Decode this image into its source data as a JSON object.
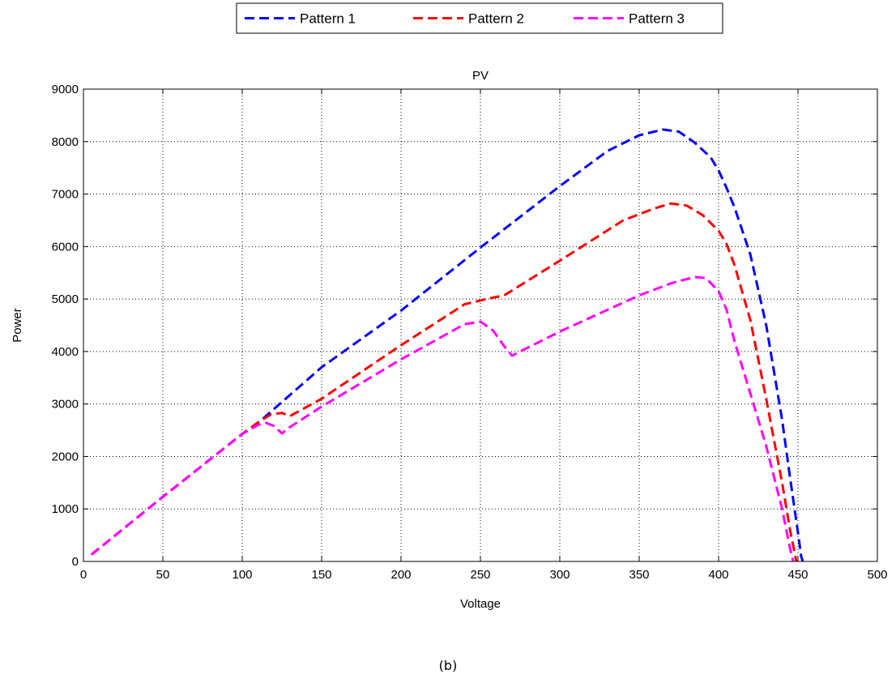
{
  "chart_data": {
    "type": "line",
    "title": "PV",
    "xlabel": "Voltage",
    "ylabel": "Power",
    "xlim": [
      0,
      500
    ],
    "ylim": [
      0,
      9000
    ],
    "xticks": [
      0,
      50,
      100,
      150,
      200,
      250,
      300,
      350,
      400,
      450,
      500
    ],
    "yticks": [
      0,
      1000,
      2000,
      3000,
      4000,
      5000,
      6000,
      7000,
      8000,
      9000
    ],
    "grid": true,
    "legend_position": "top-center-outside",
    "series": [
      {
        "name": "Pattern 1",
        "color": "#0000ff",
        "line_style": "dashed",
        "x": [
          5,
          50,
          100,
          110,
          150,
          200,
          250,
          300,
          330,
          350,
          365,
          375,
          385,
          395,
          400,
          405,
          410,
          420,
          430,
          440,
          445,
          450,
          452,
          453
        ],
        "y": [
          130,
          1230,
          2430,
          2640,
          3700,
          4780,
          5980,
          7150,
          7820,
          8120,
          8230,
          8190,
          7980,
          7700,
          7450,
          7120,
          6750,
          5850,
          4500,
          2700,
          1600,
          550,
          100,
          0
        ]
      },
      {
        "name": "Pattern 2",
        "color": "#ff0000",
        "line_style": "dashed",
        "x": [
          5,
          50,
          100,
          110,
          118,
          125,
          130,
          150,
          200,
          240,
          255,
          265,
          300,
          340,
          360,
          370,
          380,
          390,
          400,
          405,
          410,
          420,
          430,
          440,
          445,
          448,
          449
        ],
        "y": [
          130,
          1230,
          2430,
          2650,
          2800,
          2830,
          2770,
          3100,
          4120,
          4900,
          5010,
          5070,
          5730,
          6500,
          6730,
          6820,
          6780,
          6600,
          6300,
          6050,
          5650,
          4600,
          3100,
          1500,
          600,
          150,
          0
        ]
      },
      {
        "name": "Pattern 3",
        "color": "#ff00ff",
        "line_style": "dashed",
        "x": [
          5,
          50,
          100,
          110,
          115,
          120,
          125,
          130,
          150,
          200,
          240,
          250,
          258,
          265,
          270,
          275,
          300,
          350,
          370,
          385,
          392,
          400,
          405,
          410,
          420,
          430,
          440,
          445,
          447
        ],
        "y": [
          130,
          1230,
          2430,
          2600,
          2640,
          2580,
          2440,
          2560,
          2950,
          3850,
          4520,
          4570,
          4400,
          4100,
          3920,
          4000,
          4380,
          5070,
          5300,
          5420,
          5400,
          5150,
          4800,
          4200,
          3200,
          2200,
          1000,
          250,
          0
        ]
      }
    ]
  },
  "caption": "(b)"
}
